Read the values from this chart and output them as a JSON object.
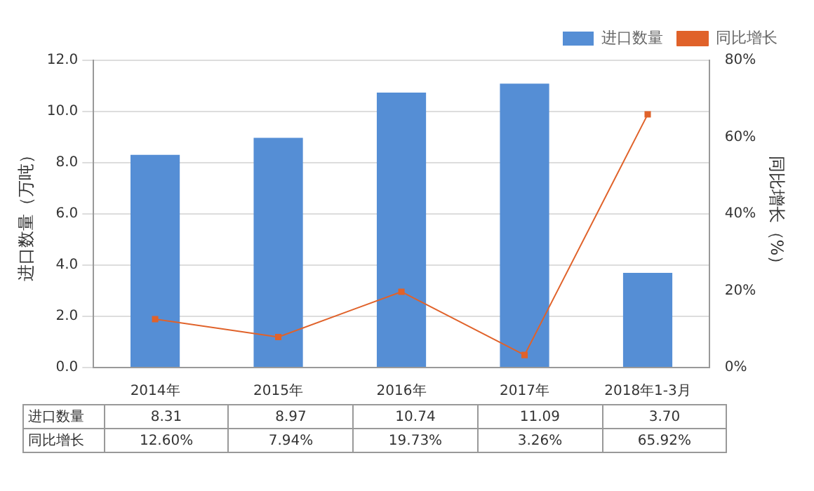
{
  "chart_data": {
    "type": "bar",
    "categories": [
      "2014年",
      "2015年",
      "2016年",
      "2017年",
      "2018年1-3月"
    ],
    "ylabel": "进口数量（万吨）",
    "y2label": "同比增长（%）",
    "series": [
      {
        "name": "进口数量",
        "color": "#558ed5",
        "values": [
          8.31,
          8.97,
          10.74,
          11.09,
          3.7
        ],
        "value_labels": [
          "8.31",
          "8.97",
          "10.74",
          "11.09",
          "3.70"
        ]
      },
      {
        "name": "同比增长",
        "type": "line",
        "axis": "y2",
        "color": "#e0622a",
        "marker": "square",
        "values": [
          12.6,
          7.94,
          19.73,
          3.26,
          65.92
        ],
        "value_labels": [
          "12.60%",
          "7.94%",
          "19.73%",
          "3.26%",
          "65.92%"
        ]
      }
    ],
    "ylim": [
      0,
      12
    ],
    "yticks": [
      {
        "value": 0,
        "label": "0.0"
      },
      {
        "value": 2,
        "label": "2.0"
      },
      {
        "value": 4,
        "label": "4.0"
      },
      {
        "value": 6,
        "label": "6.0"
      },
      {
        "value": 8,
        "label": "8.0"
      },
      {
        "value": 10,
        "label": "10.0"
      },
      {
        "value": 12,
        "label": "12.0"
      }
    ],
    "y2lim": [
      0,
      80
    ],
    "y2ticks": [
      {
        "value": 0,
        "label": "0%"
      },
      {
        "value": 20,
        "label": "20%"
      },
      {
        "value": 40,
        "label": "40%"
      },
      {
        "value": 60,
        "label": "60%"
      },
      {
        "value": 80,
        "label": "80%"
      }
    ],
    "grid": "y",
    "legend": "top right"
  }
}
